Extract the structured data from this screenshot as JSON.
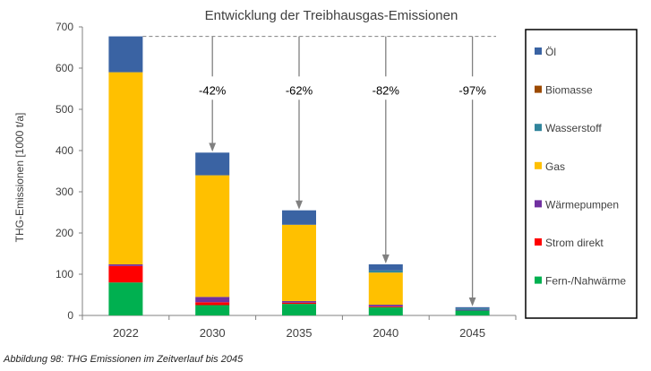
{
  "chart_data": {
    "type": "bar",
    "stacked": true,
    "title": "Entwicklung der Treibhausgas-Emissionen",
    "ylabel": "THG-Emissionen  [1000 t/a]",
    "xlabel": "",
    "ylim": [
      0,
      700
    ],
    "yticks": [
      0,
      100,
      200,
      300,
      400,
      500,
      600,
      700
    ],
    "grid": false,
    "legend_position": "right",
    "categories": [
      "2022",
      "2030",
      "2035",
      "2040",
      "2045"
    ],
    "series": [
      {
        "name": "Fern-/Nahwärme",
        "color": "#00b050",
        "values": [
          80,
          25,
          28,
          20,
          12
        ]
      },
      {
        "name": "Strom direkt",
        "color": "#ff0000",
        "values": [
          40,
          7,
          3,
          2,
          0
        ]
      },
      {
        "name": "Wärmepumpen",
        "color": "#7030a0",
        "values": [
          4,
          13,
          4,
          4,
          2
        ]
      },
      {
        "name": "Gas",
        "color": "#ffc000",
        "values": [
          466,
          295,
          185,
          78,
          0
        ]
      },
      {
        "name": "Wasserstoff",
        "color": "#31859c",
        "values": [
          0,
          0,
          0,
          5,
          3
        ]
      },
      {
        "name": "Biomasse",
        "color": "#9c4a00",
        "values": [
          0,
          0,
          0,
          0,
          0
        ]
      },
      {
        "name": "Öl",
        "color": "#3a63a3",
        "values": [
          87,
          55,
          35,
          15,
          3
        ]
      }
    ],
    "legend_order": [
      "Öl",
      "Biomasse",
      "Wasserstoff",
      "Gas",
      "Wärmepumpen",
      "Strom direkt",
      "Fern-/Nahwärme"
    ],
    "reference_line": 677,
    "annotations": [
      {
        "category": "2030",
        "label": "-42%"
      },
      {
        "category": "2035",
        "label": "-62%"
      },
      {
        "category": "2040",
        "label": "-82%"
      },
      {
        "category": "2045",
        "label": "-97%"
      }
    ]
  },
  "caption": "Abbildung 98: THG Emissionen  im Zeitverlauf bis 2045"
}
